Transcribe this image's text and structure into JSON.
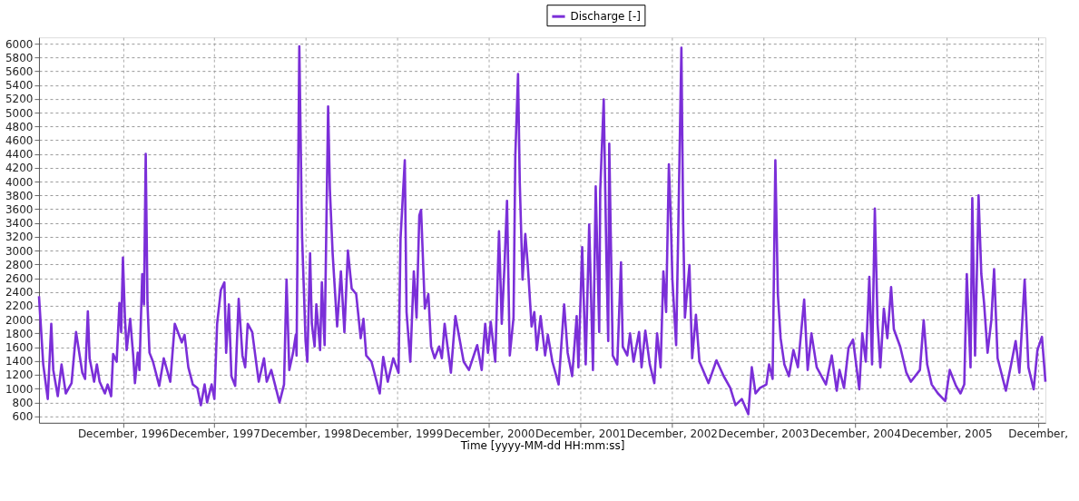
{
  "chart_data": {
    "type": "line",
    "xlabel": "Time [yyyy-MM-dd HH:mm:ss]",
    "xlim": [
      "1996-01-01",
      "2006-12-31"
    ],
    "xticks": [
      {
        "value": "1996-12-01",
        "label": "December, 1996"
      },
      {
        "value": "1997-12-01",
        "label": "December, 1997"
      },
      {
        "value": "1998-12-01",
        "label": "December, 1998"
      },
      {
        "value": "1999-12-01",
        "label": "December, 1999"
      },
      {
        "value": "2000-12-01",
        "label": "December, 2000"
      },
      {
        "value": "2001-12-01",
        "label": "December, 2001"
      },
      {
        "value": "2002-12-01",
        "label": "December, 2002"
      },
      {
        "value": "2003-12-01",
        "label": "December, 2003"
      },
      {
        "value": "2004-12-01",
        "label": "December, 2004"
      },
      {
        "value": "2005-12-01",
        "label": "December, 2005"
      },
      {
        "value": "2006-12-01",
        "label": "December,"
      }
    ],
    "ylim": [
      505,
      6090
    ],
    "yticks": [
      600,
      800,
      1000,
      1200,
      1400,
      1600,
      1800,
      2000,
      2200,
      2400,
      2600,
      2800,
      3000,
      3200,
      3400,
      3600,
      3800,
      4000,
      4200,
      4400,
      4600,
      4800,
      5000,
      5200,
      5400,
      5600,
      5800,
      6000
    ],
    "grid": true,
    "legend": "top",
    "line_style": "solid",
    "x": [
      "1996-01-01",
      "1996-01-18",
      "1996-02-05",
      "1996-02-19",
      "1996-02-27",
      "1996-03-16",
      "1996-03-31",
      "1996-04-17",
      "1996-05-10",
      "1996-05-28",
      "1996-06-22",
      "1996-07-03",
      "1996-07-14",
      "1996-07-21",
      "1996-08-08",
      "1996-08-19",
      "1996-08-30",
      "1996-09-20",
      "1996-10-01",
      "1996-10-15",
      "1996-10-23",
      "1996-11-06",
      "1996-11-17",
      "1996-11-24",
      "1996-12-01",
      "1996-12-09",
      "1996-12-16",
      "1996-12-30",
      "1997-01-11",
      "1997-01-18",
      "1997-01-29",
      "1997-02-05",
      "1997-02-16",
      "1997-02-23",
      "1997-03-02",
      "1997-03-09",
      "1997-03-17",
      "1997-03-31",
      "1997-04-25",
      "1997-05-13",
      "1997-06-08",
      "1997-06-26",
      "1997-07-24",
      "1997-08-04",
      "1997-08-19",
      "1997-09-06",
      "1997-09-24",
      "1997-10-08",
      "1997-10-23",
      "1997-11-02",
      "1997-11-20",
      "1997-12-01",
      "1997-12-12",
      "1997-12-27",
      "1998-01-10",
      "1998-01-17",
      "1998-01-28",
      "1998-02-07",
      "1998-02-22",
      "1998-03-08",
      "1998-03-23",
      "1998-04-03",
      "1998-04-13",
      "1998-05-01",
      "1998-05-27",
      "1998-06-17",
      "1998-06-28",
      "1998-07-16",
      "1998-08-18",
      "1998-09-05",
      "1998-09-15",
      "1998-09-26",
      "1998-10-11",
      "1998-10-22",
      "1998-10-25",
      "1998-11-05",
      "1998-11-16",
      "1998-11-30",
      "1998-12-07",
      "1998-12-18",
      "1998-12-25",
      "1999-01-05",
      "1999-01-12",
      "1999-01-27",
      "1999-02-03",
      "1999-02-14",
      "1999-02-28",
      "1999-03-07",
      "1999-03-18",
      "1999-04-05",
      "1999-04-20",
      "1999-05-04",
      "1999-05-18",
      "1999-06-02",
      "1999-06-20",
      "1999-07-08",
      "1999-07-19",
      "1999-07-30",
      "1999-08-20",
      "1999-09-22",
      "1999-10-06",
      "1999-10-24",
      "1999-11-15",
      "1999-12-06",
      "1999-12-14",
      "1999-12-31",
      "2000-01-07",
      "2000-01-22",
      "2000-02-05",
      "2000-02-16",
      "2000-02-27",
      "2000-03-05",
      "2000-03-20",
      "2000-04-03",
      "2000-04-14",
      "2000-04-28",
      "2000-05-16",
      "2000-05-27",
      "2000-06-07",
      "2000-07-02",
      "2000-07-20",
      "2000-08-22",
      "2000-09-12",
      "2000-10-15",
      "2000-11-02",
      "2000-11-16",
      "2000-11-27",
      "2000-12-08",
      "2000-12-26",
      "2001-01-10",
      "2001-01-21",
      "2001-02-01",
      "2001-02-11",
      "2001-02-22",
      "2001-03-09",
      "2001-03-16",
      "2001-03-27",
      "2001-04-03",
      "2001-04-14",
      "2001-04-25",
      "2001-05-05",
      "2001-05-20",
      "2001-05-31",
      "2001-06-10",
      "2001-06-25",
      "2001-07-13",
      "2001-07-24",
      "2001-08-11",
      "2001-09-05",
      "2001-09-27",
      "2001-10-11",
      "2001-10-29",
      "2001-11-16",
      "2001-11-23",
      "2001-12-08",
      "2001-12-22",
      "2002-01-05",
      "2002-01-20",
      "2002-01-31",
      "2002-02-14",
      "2002-02-18",
      "2002-03-04",
      "2002-03-15",
      "2002-03-22",
      "2002-03-26",
      "2002-04-09",
      "2002-04-27",
      "2002-05-12",
      "2002-05-19",
      "2002-06-06",
      "2002-06-17",
      "2002-07-01",
      "2002-07-23",
      "2002-08-02",
      "2002-08-17",
      "2002-09-04",
      "2002-09-22",
      "2002-10-03",
      "2002-10-17",
      "2002-10-28",
      "2002-11-08",
      "2002-11-19",
      "2002-11-26",
      "2002-12-03",
      "2002-12-18",
      "2002-12-25",
      "2003-01-08",
      "2003-01-15",
      "2003-01-22",
      "2003-02-09",
      "2003-02-20",
      "2003-03-07",
      "2003-03-21",
      "2003-04-26",
      "2003-05-28",
      "2003-06-26",
      "2003-07-22",
      "2003-08-12",
      "2003-09-06",
      "2003-10-02",
      "2003-10-16",
      "2003-10-31",
      "2003-11-18",
      "2003-12-13",
      "2003-12-24",
      "2004-01-07",
      "2004-01-18",
      "2004-01-28",
      "2004-02-08",
      "2004-02-23",
      "2004-03-12",
      "2004-03-30",
      "2004-04-17",
      "2004-05-12",
      "2004-05-26",
      "2004-06-10",
      "2004-07-01",
      "2004-08-07",
      "2004-08-30",
      "2004-09-19",
      "2004-09-30",
      "2004-10-18",
      "2004-11-05",
      "2004-11-23",
      "2004-12-18",
      "2004-12-30",
      "2005-01-13",
      "2005-01-27",
      "2005-02-07",
      "2005-02-18",
      "2005-03-01",
      "2005-03-12",
      "2005-03-26",
      "2005-04-09",
      "2005-04-24",
      "2005-05-05",
      "2005-05-30",
      "2005-06-24",
      "2005-07-12",
      "2005-08-17",
      "2005-09-01",
      "2005-09-15",
      "2005-10-03",
      "2005-10-28",
      "2005-11-26",
      "2005-12-14",
      "2006-01-08",
      "2006-01-26",
      "2006-02-10",
      "2006-02-20",
      "2006-03-07",
      "2006-03-14",
      "2006-03-25",
      "2006-04-08",
      "2006-04-19",
      "2006-04-30",
      "2006-05-14",
      "2006-05-29",
      "2006-06-09",
      "2006-06-23",
      "2006-07-26",
      "2006-08-16",
      "2006-09-03",
      "2006-09-18",
      "2006-10-09",
      "2006-10-24",
      "2006-11-14",
      "2006-11-29",
      "2006-12-17",
      "2006-12-31"
    ],
    "series": [
      {
        "name": "Discharge [-]",
        "color": "#7b2fd8",
        "values": [
          2340,
          1350,
          850,
          1940,
          1270,
          890,
          1350,
          930,
          1080,
          1820,
          1230,
          1140,
          2120,
          1440,
          1100,
          1350,
          1100,
          930,
          1060,
          890,
          1500,
          1390,
          2240,
          1820,
          2900,
          2030,
          1560,
          2010,
          1480,
          1080,
          1520,
          1270,
          2660,
          2220,
          4400,
          2240,
          1520,
          1390,
          1040,
          1440,
          1100,
          1940,
          1670,
          1780,
          1310,
          1060,
          1010,
          760,
          1060,
          800,
          1060,
          850,
          1940,
          2430,
          2540,
          1520,
          2220,
          1180,
          1040,
          2300,
          1480,
          1310,
          1940,
          1820,
          1100,
          1440,
          1100,
          1270,
          800,
          1060,
          2580,
          1270,
          1520,
          1780,
          1480,
          5960,
          3210,
          1690,
          1390,
          2960,
          1940,
          1610,
          2220,
          1560,
          2540,
          1630,
          5090,
          3890,
          2960,
          1900,
          2700,
          1820,
          3000,
          2450,
          2370,
          1730,
          2010,
          1480,
          1390,
          930,
          1460,
          1100,
          1440,
          1230,
          3170,
          4310,
          2110,
          1390,
          2700,
          2030,
          3510,
          3590,
          2160,
          2370,
          1610,
          1440,
          1610,
          1440,
          1940,
          1230,
          2050,
          1390,
          1270,
          1630,
          1270,
          1940,
          1520,
          1970,
          1390,
          3280,
          1940,
          2790,
          3720,
          1480,
          2030,
          4360,
          5560,
          3970,
          2580,
          3240,
          2790,
          1900,
          2110,
          1560,
          2050,
          1480,
          1780,
          1390,
          1060,
          2220,
          1520,
          1180,
          2050,
          1310,
          3050,
          1350,
          3380,
          1270,
          3930,
          1820,
          3870,
          5190,
          2830,
          1690,
          4550,
          1480,
          1350,
          2830,
          1610,
          1480,
          1800,
          1390,
          1820,
          1310,
          1840,
          1350,
          1080,
          1800,
          1310,
          2700,
          2110,
          4250,
          3550,
          2580,
          1630,
          3000,
          5940,
          3420,
          2030,
          2790,
          1440,
          2070,
          1390,
          1080,
          1410,
          1180,
          1010,
          760,
          850,
          630,
          1310,
          930,
          1010,
          1060,
          1350,
          1140,
          4310,
          2370,
          1730,
          1350,
          1180,
          1560,
          1310,
          2290,
          1270,
          1800,
          1310,
          1060,
          1480,
          970,
          1270,
          1010,
          1590,
          1710,
          990,
          1800,
          1390,
          2620,
          1350,
          3610,
          1940,
          1310,
          2160,
          1730,
          2470,
          1860,
          1610,
          1230,
          1100,
          1270,
          1990,
          1350,
          1060,
          930,
          820,
          1270,
          1040,
          930,
          1060,
          2660,
          1310,
          3760,
          1480,
          3800,
          2660,
          2240,
          1520,
          1990,
          2730,
          1440,
          970,
          1350,
          1690,
          1230,
          2580,
          1310,
          990,
          1560,
          1750,
          1100
        ]
      }
    ]
  }
}
